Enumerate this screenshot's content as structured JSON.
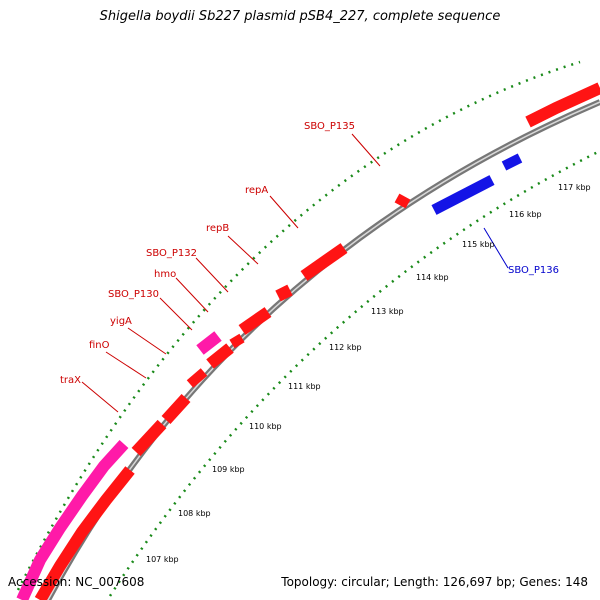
{
  "title": "Shigella boydii Sb227 plasmid pSB4_227, complete sequence",
  "accession": "Accession: NC_007608",
  "summary": "Topology: circular; Length: 126,697 bp; Genes: 148",
  "colors": {
    "backbone": "#8a8a8a",
    "tick": "#1a8a1a",
    "forward_gene": "#ff1414",
    "reverse_gene": "#1414e6",
    "pink_gene": "#ff1aa8",
    "label_red": "#cc0000",
    "label_blue": "#0000cc"
  },
  "kbp_ticks": [
    "107 kbp",
    "108 kbp",
    "109 kbp",
    "110 kbp",
    "111 kbp",
    "112 kbp",
    "113 kbp",
    "114 kbp",
    "115 kbp",
    "116 kbp",
    "117 kbp"
  ],
  "gene_labels": [
    {
      "text": "SBO_P135",
      "color": "red"
    },
    {
      "text": "repA",
      "color": "red"
    },
    {
      "text": "repB",
      "color": "red"
    },
    {
      "text": "SBO_P132",
      "color": "red"
    },
    {
      "text": "hmo",
      "color": "red"
    },
    {
      "text": "SBO_P130",
      "color": "red"
    },
    {
      "text": "yigA",
      "color": "red"
    },
    {
      "text": "finO",
      "color": "red"
    },
    {
      "text": "traX",
      "color": "red"
    },
    {
      "text": "SBO_P136",
      "color": "blue"
    }
  ]
}
